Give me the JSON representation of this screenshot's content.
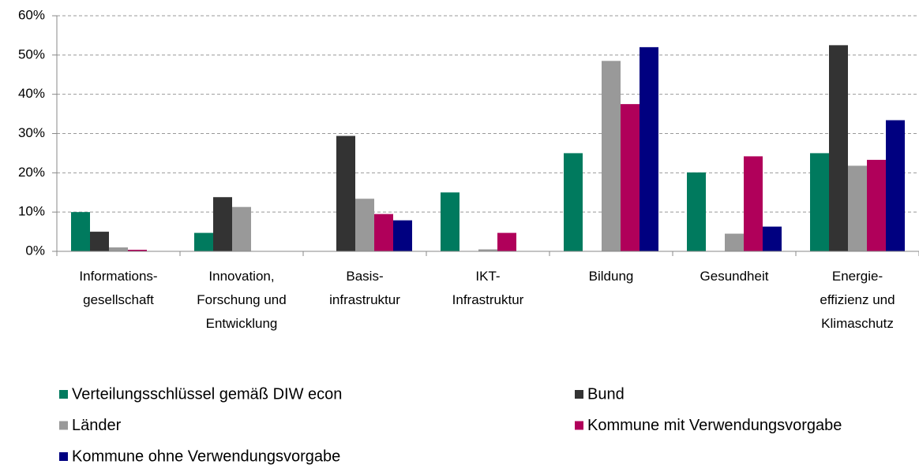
{
  "chart_data": {
    "type": "bar",
    "categories": [
      "Informations-\ngesellschaft",
      "Innovation,\nForschung und\nEntwicklung",
      "Basis-\ninfrastruktur",
      "IKT-\nInfrastruktur",
      "Bildung",
      "Gesundheit",
      "Energie-\neffizienz und\nKlimaschutz"
    ],
    "series": [
      {
        "name": "Verteilungsschlüssel gemäß DIW econ",
        "color": "#007a5e",
        "values": [
          10,
          4.7,
          0,
          15,
          25,
          20.1,
          25
        ]
      },
      {
        "name": "Bund",
        "color": "#333333",
        "values": [
          5,
          13.8,
          29.4,
          0,
          0,
          0,
          52.5
        ]
      },
      {
        "name": "Länder",
        "color": "#999999",
        "values": [
          1,
          11.3,
          13.4,
          0.5,
          48.5,
          4.5,
          21.8
        ]
      },
      {
        "name": "Kommune mit Verwendungsvorgabe",
        "color": "#b0005a",
        "values": [
          0.4,
          0,
          9.5,
          4.7,
          37.5,
          24.2,
          23.3
        ]
      },
      {
        "name": "Kommune ohne Verwendungsvorgabe",
        "color": "#000080",
        "values": [
          0,
          0,
          7.9,
          0,
          52,
          6.3,
          33.4
        ]
      }
    ],
    "ylim": [
      0,
      60
    ],
    "yticks": [
      {
        "value": 0,
        "label": "0%"
      },
      {
        "value": 10,
        "label": "10%"
      },
      {
        "value": 20,
        "label": "20%"
      },
      {
        "value": 30,
        "label": "30%"
      },
      {
        "value": 40,
        "label": "40%"
      },
      {
        "value": 50,
        "label": "50%"
      },
      {
        "value": 60,
        "label": "60%"
      }
    ],
    "grid": true
  }
}
